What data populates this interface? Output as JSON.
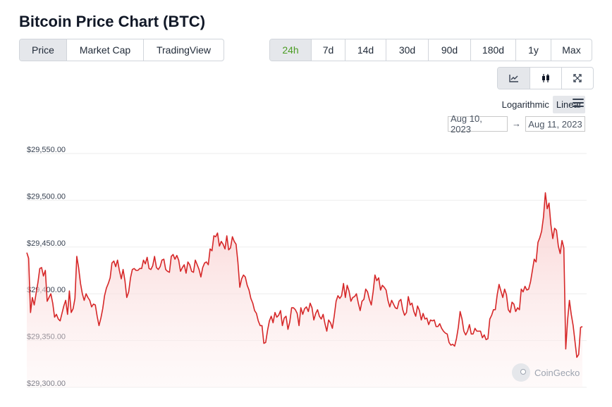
{
  "title": "Bitcoin Price Chart (BTC)",
  "metric_tabs": [
    {
      "label": "Price",
      "active": true
    },
    {
      "label": "Market Cap",
      "active": false
    },
    {
      "label": "TradingView",
      "active": false
    }
  ],
  "range_tabs": [
    {
      "label": "24h",
      "active": true
    },
    {
      "label": "7d",
      "active": false
    },
    {
      "label": "14d",
      "active": false
    },
    {
      "label": "30d",
      "active": false
    },
    {
      "label": "90d",
      "active": false
    },
    {
      "label": "180d",
      "active": false
    },
    {
      "label": "1y",
      "active": false
    },
    {
      "label": "Max",
      "active": false
    }
  ],
  "chart_type_buttons": [
    {
      "icon": "line-chart-icon",
      "active": true
    },
    {
      "icon": "candlestick-icon",
      "active": false
    },
    {
      "icon": "expand-icon",
      "active": false
    }
  ],
  "scale": {
    "logarithmic": "Logarithmic",
    "linear": "Linear",
    "active": "linear"
  },
  "date_range": {
    "from": "Aug 10, 2023",
    "arrow": "→",
    "to": "Aug 11, 2023"
  },
  "watermark": "CoinGecko",
  "colors": {
    "line": "#d62728",
    "fill_top": "#f8caca",
    "active_range": "#4b9c23",
    "grid": "#eeeeee"
  },
  "chart_data": {
    "type": "area",
    "x_range": [
      "Aug 10, 2023",
      "Aug 11, 2023"
    ],
    "ylim": [
      29300,
      29550
    ],
    "y_ticks": [
      "$29,550.00",
      "$29,500.00",
      "$29,450.00",
      "$29,400.00",
      "$29,350.00",
      "$29,300.00"
    ],
    "y_tick_values": [
      29550,
      29500,
      29450,
      29400,
      29350,
      29300
    ],
    "grid": true,
    "series": [
      {
        "values": [
          29444,
          29438,
          29380,
          29396,
          29388,
          29400,
          29412,
          29427,
          29428,
          29419,
          29425,
          29392,
          29396,
          29400,
          29390,
          29375,
          29378,
          29373,
          29371,
          29379,
          29387,
          29393,
          29378,
          29403,
          29380,
          29384,
          29395,
          29440,
          29428,
          29411,
          29400,
          29393,
          29400,
          29396,
          29393,
          29386,
          29389,
          29388,
          29376,
          29366,
          29374,
          29384,
          29398,
          29406,
          29411,
          29417,
          29433,
          29435,
          29429,
          29436,
          29425,
          29416,
          29426,
          29414,
          29396,
          29402,
          29417,
          29426,
          29427,
          29425,
          29425,
          29427,
          29427,
          29436,
          29432,
          29439,
          29427,
          29426,
          29430,
          29440,
          29428,
          29426,
          29429,
          29436,
          29437,
          29426,
          29424,
          29423,
          29440,
          29442,
          29437,
          29441,
          29436,
          29424,
          29428,
          29431,
          29422,
          29434,
          29431,
          29424,
          29423,
          29436,
          29431,
          29426,
          29418,
          29428,
          29433,
          29434,
          29431,
          29448,
          29446,
          29462,
          29461,
          29465,
          29451,
          29456,
          29453,
          29448,
          29462,
          29447,
          29449,
          29461,
          29456,
          29453,
          29434,
          29407,
          29416,
          29420,
          29418,
          29409,
          29404,
          29395,
          29390,
          29382,
          29379,
          29371,
          29366,
          29366,
          29347,
          29348,
          29361,
          29371,
          29376,
          29369,
          29380,
          29375,
          29377,
          29382,
          29366,
          29374,
          29376,
          29362,
          29370,
          29385,
          29385,
          29383,
          29379,
          29366,
          29385,
          29378,
          29384,
          29386,
          29381,
          29390,
          29385,
          29372,
          29379,
          29383,
          29376,
          29373,
          29378,
          29368,
          29360,
          29372,
          29369,
          29363,
          29376,
          29392,
          29398,
          29395,
          29398,
          29411,
          29396,
          29409,
          29403,
          29392,
          29396,
          29397,
          29400,
          29390,
          29382,
          29392,
          29394,
          29405,
          29402,
          29394,
          29388,
          29402,
          29420,
          29414,
          29417,
          29404,
          29409,
          29407,
          29404,
          29393,
          29386,
          29393,
          29389,
          29385,
          29384,
          29392,
          29394,
          29383,
          29377,
          29380,
          29397,
          29388,
          29390,
          29381,
          29376,
          29387,
          29382,
          29372,
          29379,
          29373,
          29374,
          29367,
          29372,
          29371,
          29372,
          29365,
          29365,
          29368,
          29363,
          29360,
          29358,
          29357,
          29348,
          29345,
          29346,
          29344,
          29352,
          29364,
          29381,
          29373,
          29360,
          29356,
          29360,
          29367,
          29357,
          29357,
          29363,
          29360,
          29360,
          29360,
          29353,
          29356,
          29351,
          29352,
          29373,
          29377,
          29383,
          29383,
          29399,
          29410,
          29403,
          29396,
          29405,
          29399,
          29383,
          29380,
          29391,
          29389,
          29381,
          29385,
          29383,
          29405,
          29402,
          29408,
          29404,
          29405,
          29413,
          29425,
          29437,
          29434,
          29455,
          29460,
          29467,
          29482,
          29508,
          29491,
          29497,
          29474,
          29459,
          29470,
          29468,
          29451,
          29443,
          29457,
          29449,
          29341,
          29372,
          29393,
          29378,
          29366,
          29349,
          29332,
          29335,
          29364,
          29365
        ]
      }
    ]
  }
}
